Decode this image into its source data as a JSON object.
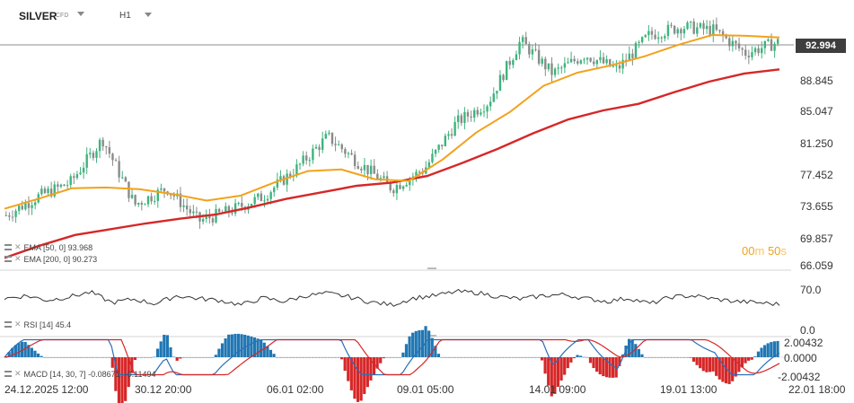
{
  "header": {
    "symbol": "SILVER",
    "instrument_type": "CFD",
    "timeframe": "H1"
  },
  "indicators": {
    "ema50": "EMA [50,  0]  93.968",
    "ema200": "EMA [200,  0]  90.273",
    "rsi": "RSI [14]  45.4",
    "macd": "MACD [14, 30, 7]  -0.08671,  -0.11494"
  },
  "countdown": {
    "minutes": "00",
    "m": "m",
    "seconds": "50",
    "s": "s"
  },
  "current_price": "92.994",
  "colors": {
    "up": "#3fb37c",
    "down": "#8a8a8a",
    "ema50": "#f2a21a",
    "ema200": "#d62728",
    "macd_pos": "#1f77b4",
    "macd_neg": "#d62728",
    "macd_line": "#2a6fb8",
    "signal_line": "#d62728"
  },
  "chart_data": [
    {
      "type": "candlestick",
      "panel": "price",
      "instrument": "SILVER",
      "y_ticks": [
        "92.994",
        "88.845",
        "85.047",
        "81.250",
        "77.452",
        "73.655",
        "69.857",
        "66.059"
      ],
      "x_ticks": [
        "24.12.2025  12:00",
        "30.12  20:00",
        "06.01  02:00",
        "09.01  05:00",
        "14.01  09:00",
        "19.01  13:00",
        "22.01  18:00"
      ],
      "grid": false,
      "last_price": 92.994,
      "approx_close_path": [
        [
          "24.12.2025 12:00",
          72.2
        ],
        [
          "26.12",
          74.5
        ],
        [
          "27.12",
          76.2
        ],
        [
          "27.12 night",
          81.5
        ],
        [
          "29.12",
          73.5
        ],
        [
          "30.12",
          75.5
        ],
        [
          "30.12 20:00",
          71.5
        ],
        [
          "01.01",
          72.8
        ],
        [
          "02.01",
          74.5
        ],
        [
          "05.01",
          77.8
        ],
        [
          "06.01 02:00",
          81.8
        ],
        [
          "07.01",
          78.5
        ],
        [
          "08.01",
          75.5
        ],
        [
          "09.01 05:00",
          77.8
        ],
        [
          "12.01",
          83.5
        ],
        [
          "13.01",
          86.0
        ],
        [
          "14.01 09:00",
          93.5
        ],
        [
          "15.01",
          89.5
        ],
        [
          "16.01",
          91.8
        ],
        [
          "18.01",
          90.0
        ],
        [
          "19.01",
          94.2
        ],
        [
          "19.01 13:00",
          95.2
        ],
        [
          "20.01",
          94.8
        ],
        [
          "21.01",
          92.0
        ],
        [
          "22.01 18:00",
          93.3
        ]
      ],
      "series": [
        {
          "name": "EMA [50, 0]",
          "last": 93.968,
          "approx": [
            73.0,
            74.2,
            75.5,
            75.6,
            75.4,
            74.8,
            74.0,
            74.6,
            76.2,
            77.6,
            77.8,
            76.6,
            76.4,
            79.0,
            82.3,
            84.8,
            88.0,
            89.6,
            90.5,
            91.6,
            93.0,
            94.2,
            94.1,
            93.9
          ]
        },
        {
          "name": "EMA [200, 0]",
          "last": 90.273,
          "approx": [
            67.0,
            68.5,
            69.8,
            70.5,
            71.2,
            71.8,
            72.3,
            73.2,
            74.2,
            75.0,
            75.8,
            76.2,
            77.0,
            78.6,
            80.3,
            82.2,
            83.9,
            85.0,
            85.8,
            87.2,
            88.5,
            89.5,
            90.0
          ]
        }
      ]
    },
    {
      "type": "line",
      "panel": "RSI",
      "name": "RSI [14]",
      "last": 45.4,
      "y_ticks": [
        "70.0",
        "0.0"
      ],
      "approx": [
        55,
        60,
        52,
        58,
        66,
        48,
        54,
        46,
        60,
        55,
        52,
        44,
        56,
        50,
        60,
        64,
        58,
        49,
        44,
        56,
        60,
        67,
        65,
        58,
        54,
        60,
        62,
        55,
        50,
        56,
        46,
        58,
        60,
        54,
        50,
        48,
        45
      ]
    },
    {
      "type": "bar+line",
      "panel": "MACD",
      "name": "MACD [14, 30, 7]",
      "last_macd": -0.08671,
      "last_signal": -0.11494,
      "y_ticks": [
        "2.00432",
        "0.0000",
        "-2.00432"
      ]
    }
  ]
}
